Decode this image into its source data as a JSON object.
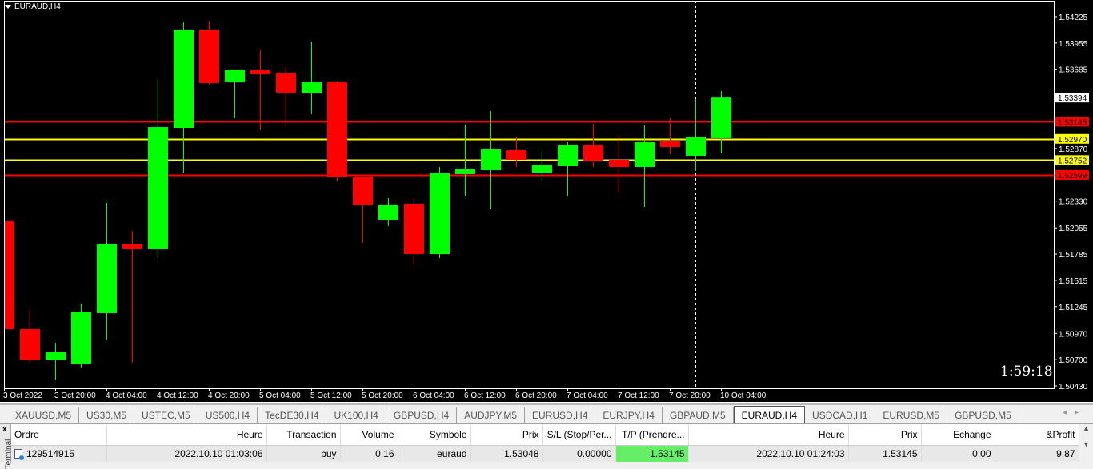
{
  "chart": {
    "title": "EURAUD,H4",
    "countdown": "1:59:18",
    "colors": {
      "bull": "#00ff00",
      "bear": "#ff0000",
      "background": "#000000",
      "axis": "#ffffff",
      "support_resistance": "#ff0000",
      "inner_levels": "#ffff00"
    },
    "price_ticks": [
      "1.54225",
      "1.53955",
      "1.53685",
      "1.52870",
      "1.52330",
      "1.52055",
      "1.51785",
      "1.51515",
      "1.51245",
      "1.50970",
      "1.50700",
      "1.50430"
    ],
    "price_range": [
      1.5043,
      1.54225
    ],
    "time_labels": [
      "3 Oct 2022",
      "3 Oct 20:00",
      "4 Oct 04:00",
      "4 Oct 12:00",
      "4 Oct 20:00",
      "5 Oct 04:00",
      "5 Oct 12:00",
      "5 Oct 20:00",
      "6 Oct 04:00",
      "6 Oct 12:00",
      "6 Oct 20:00",
      "7 Oct 04:00",
      "7 Oct 12:00",
      "7 Oct 20:00",
      "10 Oct 04:00"
    ],
    "current_price": {
      "label": "1.53394",
      "value": 1.53394
    },
    "levels": [
      {
        "label": "1.53145",
        "value": 1.53145,
        "color": "#ff0000"
      },
      {
        "label": "1.52970",
        "value": 1.5297,
        "color": "#ffff00"
      },
      {
        "label": "1.52752",
        "value": 1.52752,
        "color": "#ffff00"
      },
      {
        "label": "1.52599",
        "value": 1.52599,
        "color": "#ff0000"
      }
    ],
    "vertical_marker_candle": 27,
    "candles": [
      [
        1.52122,
        1.52237,
        1.50898,
        1.51013
      ],
      [
        1.51013,
        1.5121,
        1.5066,
        1.50701
      ],
      [
        1.50693,
        1.50874,
        1.50496,
        1.50783
      ],
      [
        1.5066,
        1.51276,
        1.50619,
        1.51186
      ],
      [
        1.51178,
        1.52311,
        1.50907,
        1.51884
      ],
      [
        1.51892,
        1.52024,
        1.50668,
        1.51835
      ],
      [
        1.51835,
        1.53584,
        1.51744,
        1.53091
      ],
      [
        1.53083,
        1.54168,
        1.52623,
        1.54094
      ],
      [
        1.54094,
        1.54184,
        1.53527,
        1.53543
      ],
      [
        1.53551,
        1.53675,
        1.53182,
        1.53675
      ],
      [
        1.53683,
        1.5388,
        1.53059,
        1.53642
      ],
      [
        1.5365,
        1.53708,
        1.53108,
        1.53445
      ],
      [
        1.53437,
        1.5397,
        1.53223,
        1.53551
      ],
      [
        1.53551,
        1.5356,
        1.52533,
        1.52574
      ],
      [
        1.52582,
        1.52582,
        1.519,
        1.52295
      ],
      [
        1.52139,
        1.5236,
        1.52073,
        1.52295
      ],
      [
        1.52303,
        1.5236,
        1.5167,
        1.51785
      ],
      [
        1.51785,
        1.52681,
        1.51744,
        1.52615
      ],
      [
        1.52607,
        1.53116,
        1.52385,
        1.52664
      ],
      [
        1.52648,
        1.53256,
        1.52245,
        1.52862
      ],
      [
        1.52853,
        1.52993,
        1.52681,
        1.52755
      ],
      [
        1.52615,
        1.52837,
        1.52533,
        1.52697
      ],
      [
        1.52689,
        1.52935,
        1.52385,
        1.52903
      ],
      [
        1.52903,
        1.53124,
        1.52681,
        1.52747
      ],
      [
        1.52755,
        1.53001,
        1.5241,
        1.52681
      ],
      [
        1.52681,
        1.53108,
        1.5227,
        1.52935
      ],
      [
        1.52944,
        1.53182,
        1.52812,
        1.52886
      ],
      [
        1.52796,
        1.53379,
        1.5264,
        1.52985
      ],
      [
        1.52977,
        1.53461,
        1.5282,
        1.53394
      ]
    ]
  },
  "tabs": [
    "XAUUSD,M5",
    "US30,M5",
    "USTEC,M5",
    "US500,H4",
    "TecDE30,H4",
    "UK100,H4",
    "GBPUSD,H4",
    "AUDJPY,M5",
    "EURUSD,H4",
    "EURJPY,H4",
    "GBPAUD,M5",
    "EURAUD,H4",
    "USDCAD,H1",
    "EURUSD,M5",
    "GBPUSD,M5"
  ],
  "active_tab": "EURAUD,H4",
  "terminal": {
    "close": "x",
    "side_label": "Terminal",
    "columns": [
      "Ordre",
      "Heure",
      "Transaction",
      "Volume",
      "Symbole",
      "Prix",
      "S/L (Stop/Per...",
      "T/P (Prendre...",
      "Heure",
      "Prix",
      "Echange",
      "&Profit"
    ],
    "rows": [
      [
        "129514915",
        "2022.10.10 01:03:06",
        "buy",
        "0.16",
        "euraud",
        "1.53048",
        "0.00000",
        "1.53145",
        "2022.10.10 01:24:03",
        "1.53145",
        "0.00",
        "9.87"
      ]
    ]
  }
}
